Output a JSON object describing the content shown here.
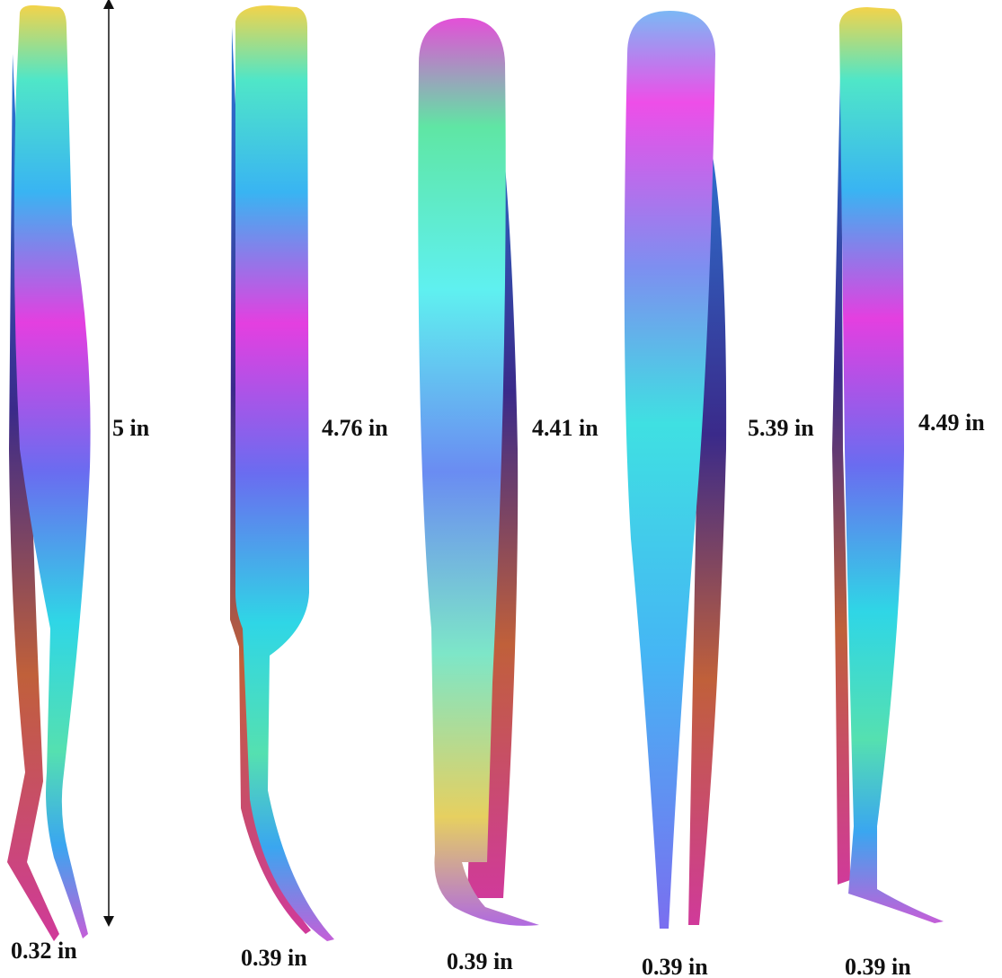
{
  "tweezers": [
    {
      "length": "5 in",
      "tip": "0.32 in"
    },
    {
      "length": "4.76 in",
      "tip": "0.39 in"
    },
    {
      "length": "4.41 in",
      "tip": "0.39 in"
    },
    {
      "length": "5.39 in",
      "tip": "0.39 in"
    },
    {
      "length": "4.49 in",
      "tip": "0.39 in"
    }
  ]
}
